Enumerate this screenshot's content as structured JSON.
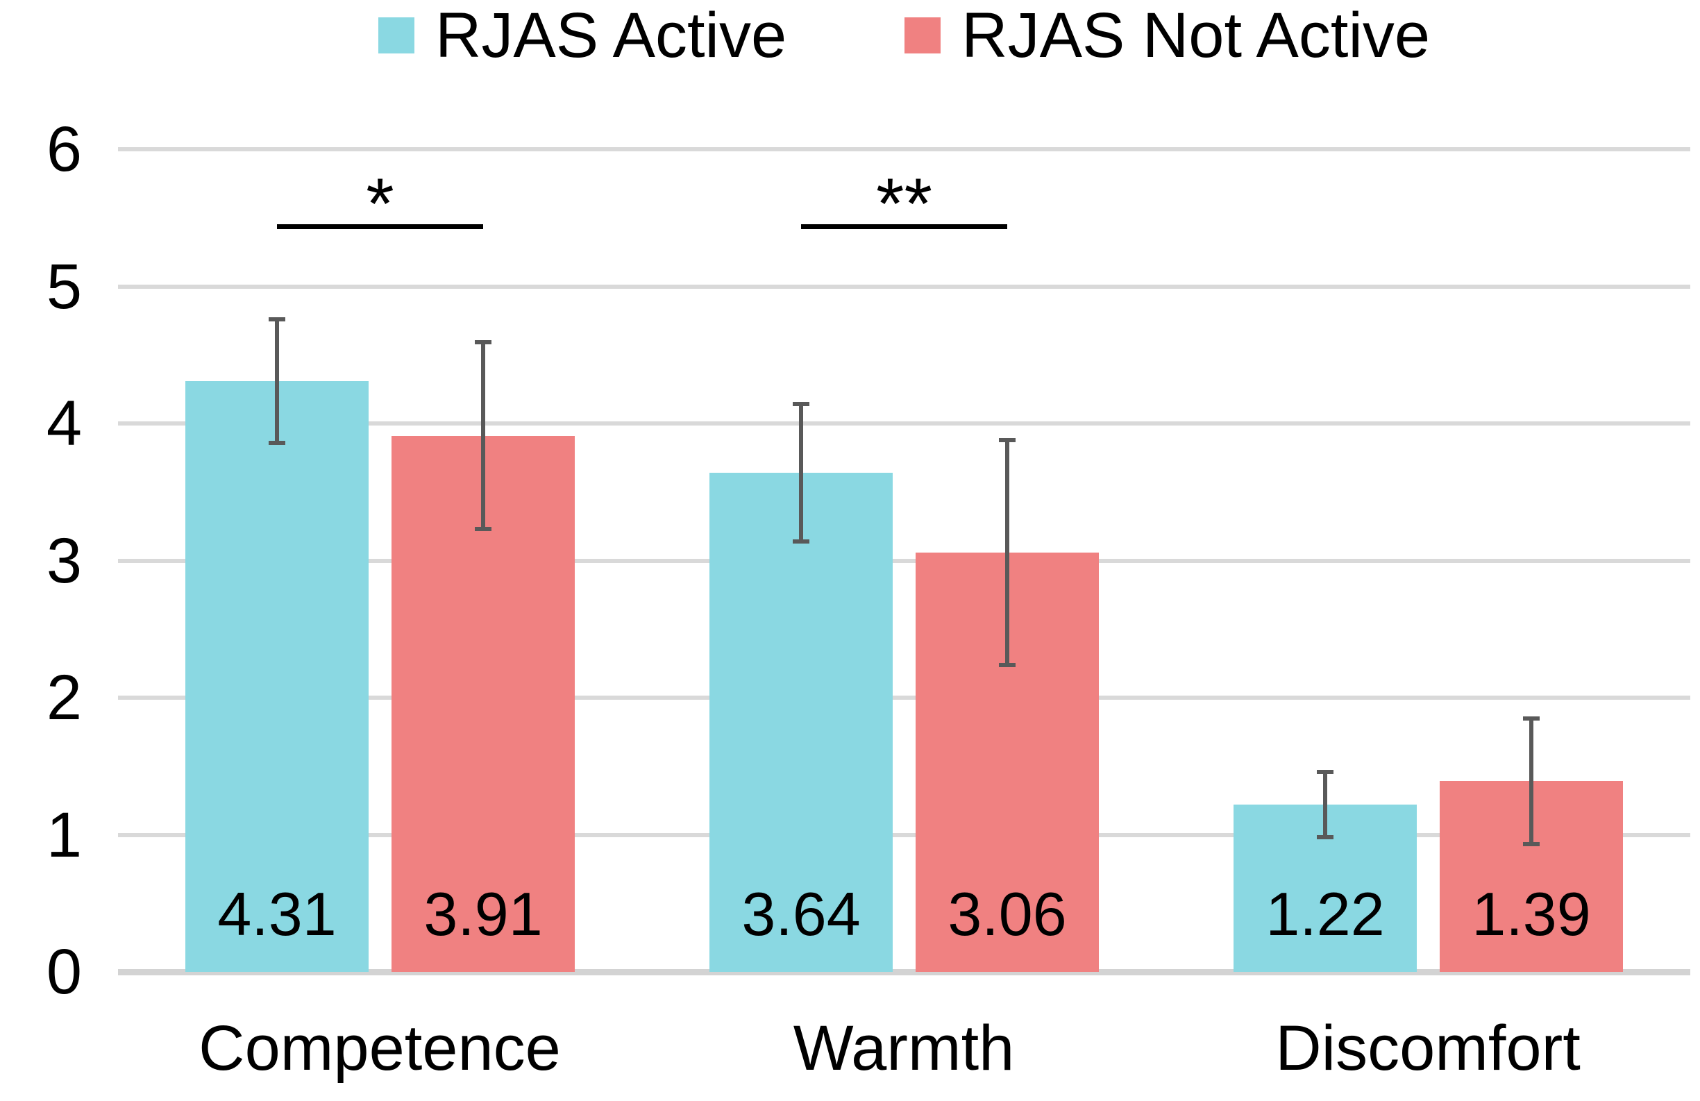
{
  "chart_data": {
    "type": "bar",
    "title": "",
    "categories": [
      "Competence",
      "Warmth",
      "Discomfort"
    ],
    "series": [
      {
        "name": "RJAS Active",
        "color": "#8AD8E2",
        "values": [
          4.31,
          3.64,
          1.22
        ],
        "labels": [
          "4.31",
          "3.64",
          "1.22"
        ],
        "error_low": [
          3.86,
          3.14,
          0.98
        ],
        "error_high": [
          4.76,
          4.14,
          1.46
        ]
      },
      {
        "name": "RJAS Not Active",
        "color": "#F08181",
        "values": [
          3.91,
          3.06,
          1.39
        ],
        "labels": [
          "3.91",
          "3.06",
          "1.39"
        ],
        "error_low": [
          3.23,
          2.24,
          0.93
        ],
        "error_high": [
          4.59,
          3.88,
          1.85
        ]
      }
    ],
    "ylim": [
      0,
      6
    ],
    "y_ticks": [
      0,
      1,
      2,
      3,
      4,
      5,
      6
    ],
    "grid": true,
    "legend_position": "top-center",
    "annotations": [
      {
        "category_index": 0,
        "label": "*",
        "y_value": 5.44
      },
      {
        "category_index": 1,
        "label": "**",
        "y_value": 5.44
      }
    ],
    "colors": {
      "gridline": "#D9D9D9",
      "baseline": "#D3D3D3",
      "error_bar": "#595959",
      "significance": "#000000",
      "text": "#000000"
    }
  }
}
